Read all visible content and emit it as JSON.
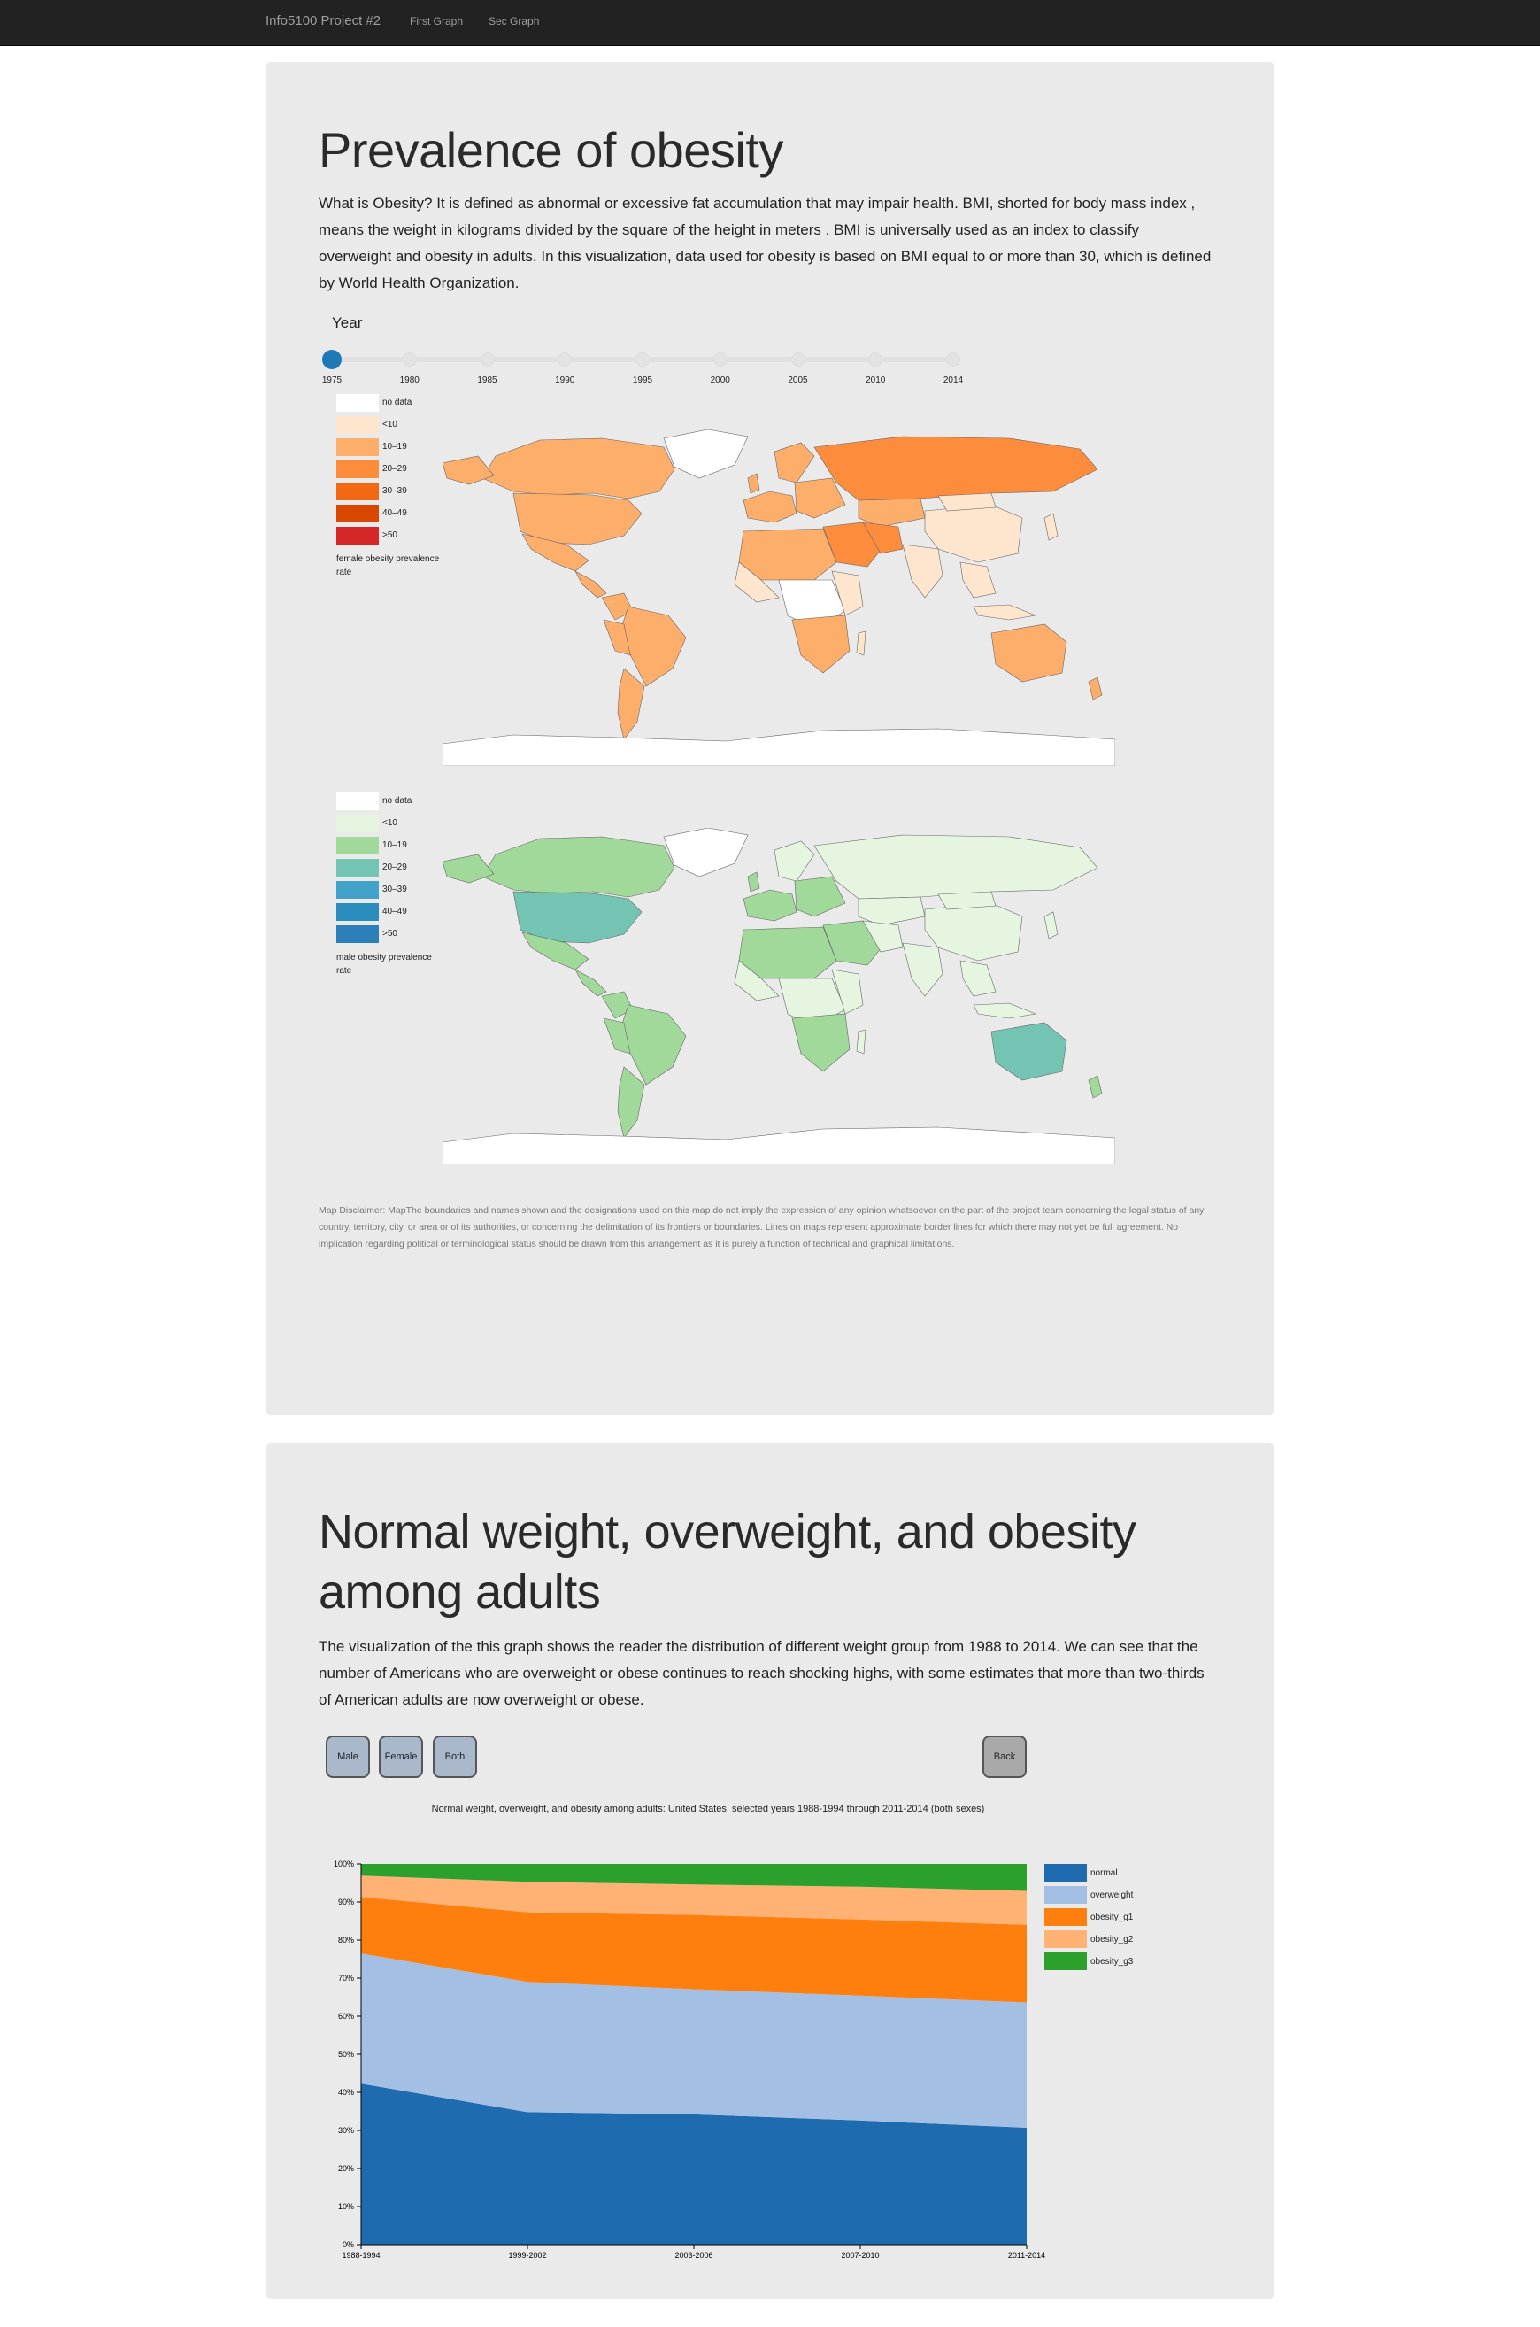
{
  "nav": {
    "brand": "Info5100 Project #2",
    "links": [
      "First Graph",
      "Sec Graph"
    ]
  },
  "section1": {
    "title": "Prevalence of obesity",
    "description": "What is Obesity? It is defined as abnormal or excessive fat accumulation that may impair health. BMI, shorted for body mass index , means the weight in kilograms divided by the square of the height in meters . BMI is universally used as an index to classify overweight and obesity in adults. In this visualization, data used for obesity is based on BMI equal to or more than 30, which is defined by World Health Organization.",
    "slider": {
      "label": "Year",
      "years": [
        "1975",
        "1980",
        "1985",
        "1990",
        "1995",
        "2000",
        "2005",
        "2010",
        "2014"
      ],
      "selected_year": "1975"
    },
    "legend_female": {
      "items": [
        "no data",
        "<10",
        "10–19",
        "20–29",
        "30–39",
        "40–49",
        ">50"
      ],
      "colors": [
        "#ffffff",
        "#fee6ce",
        "#fdae6b",
        "#fd8d3c",
        "#f16913",
        "#d94801",
        "#d62728"
      ],
      "caption": "female obesity prevalence rate"
    },
    "legend_male": {
      "items": [
        "no data",
        "<10",
        "10–19",
        "20–29",
        "30–39",
        "40–49",
        ">50"
      ],
      "colors": [
        "#ffffff",
        "#e5f5e0",
        "#a1d99b",
        "#74c4b4",
        "#43a2ca",
        "#2b8cbe",
        "#2c7fb8"
      ],
      "caption": "male obesity prevalence rate"
    },
    "disclaimer": "Map Disclaimer: MapThe boundaries and names shown and the designations used on this map do not imply the expression of any opinion whatsoever on the part of the project team concerning the legal status of any country, territory, city, or area or of its authorities, or concerning the delimitation of its frontiers or boundaries. Lines on maps represent approximate border lines for which there may not yet be full agreement. No implication regarding political or terminological status should be drawn from this arrangement as it is purely a function of technical and graphical limitations."
  },
  "section2": {
    "title": "Normal weight, overweight, and obesity among adults",
    "description": "The visualization of the this graph shows the reader the distribution of different weight group from 1988 to 2014. We can see that the number of Americans who are overweight or obese continues to reach shocking highs, with some estimates that more than two-thirds of American adults are now overweight or obese.",
    "buttons": {
      "male": "Male",
      "female": "Female",
      "both": "Both",
      "back": "Back"
    }
  },
  "chart_data": {
    "type": "area",
    "title": "Normal weight, overweight, and obesity among adults: United States, selected years 1988-1994 through 2011-2014 (both sexes)",
    "categories": [
      "1988-1994",
      "1999-2002",
      "2003-2006",
      "2007-2010",
      "2011-2014"
    ],
    "y_ticks": [
      "0%",
      "10%",
      "20%",
      "30%",
      "40%",
      "50%",
      "60%",
      "70%",
      "80%",
      "90%",
      "100%"
    ],
    "ylim": [
      0,
      100
    ],
    "stacked": true,
    "legend_position": "right",
    "series": [
      {
        "name": "normal",
        "color": "#1f6bb0",
        "values": [
          42.3,
          34.8,
          34.2,
          32.6,
          30.7
        ]
      },
      {
        "name": "overweight",
        "color": "#a4bfe4",
        "values": [
          34.2,
          34.2,
          32.9,
          32.8,
          32.9
        ]
      },
      {
        "name": "obesity_g1",
        "color": "#ff7f0e",
        "values": [
          14.8,
          18.3,
          19.5,
          20.0,
          20.4
        ]
      },
      {
        "name": "obesity_g2",
        "color": "#ffb273",
        "values": [
          5.6,
          8.0,
          8.0,
          8.6,
          8.9
        ]
      },
      {
        "name": "obesity_g3",
        "color": "#2ca02c",
        "values": [
          3.1,
          4.7,
          5.4,
          6.0,
          7.1
        ]
      }
    ]
  }
}
